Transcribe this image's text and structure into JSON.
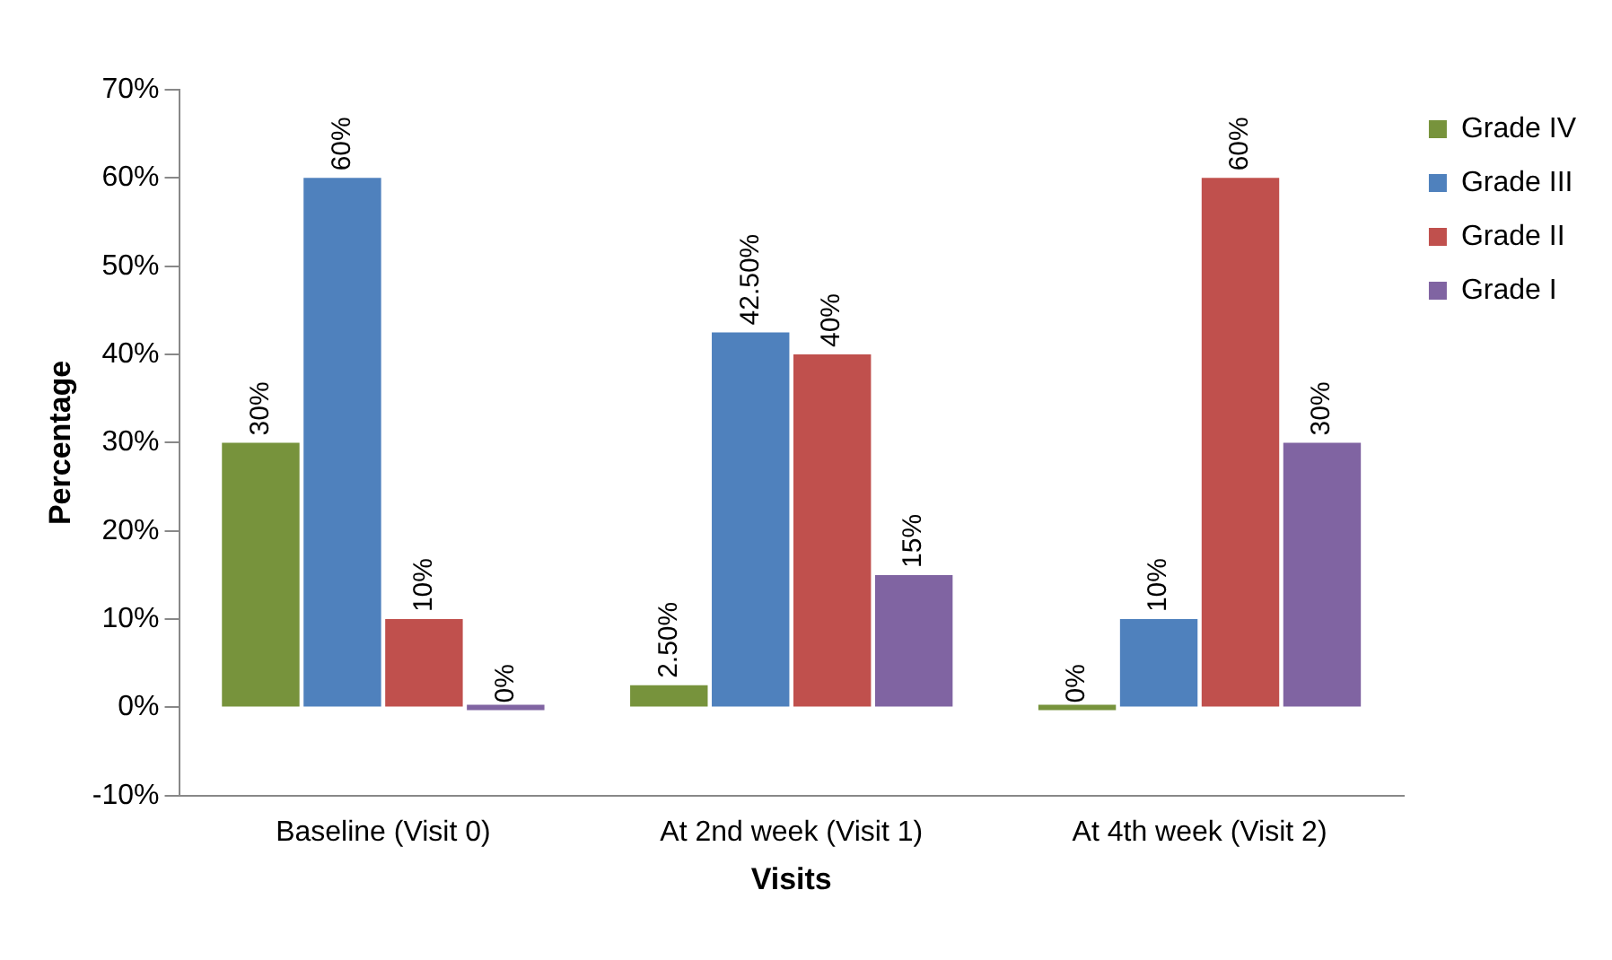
{
  "chart_data": {
    "type": "bar",
    "xlabel": "Visits",
    "ylabel": "Percentage",
    "categories": [
      "Baseline (Visit 0)",
      "At 2nd week (Visit 1)",
      "At 4th week (Visit 2)"
    ],
    "series": [
      {
        "name": "Grade IV",
        "color": "#77933c",
        "values": [
          30,
          2.5,
          0
        ],
        "value_labels": [
          "30%",
          "2.50%",
          "0%"
        ]
      },
      {
        "name": "Grade III",
        "color": "#4f81bd",
        "values": [
          60,
          42.5,
          10
        ],
        "value_labels": [
          "60%",
          "42.50%",
          "10%"
        ]
      },
      {
        "name": "Grade II",
        "color": "#c0504d",
        "values": [
          10,
          40,
          60
        ],
        "value_labels": [
          "10%",
          "40%",
          "60%"
        ]
      },
      {
        "name": "Grade I",
        "color": "#8064a2",
        "values": [
          0,
          15,
          30
        ],
        "value_labels": [
          "0%",
          "15%",
          "30%"
        ]
      }
    ],
    "ylim": [
      -10,
      70
    ],
    "yticks": [
      {
        "value": -10,
        "label": "-10%"
      },
      {
        "value": 0,
        "label": "0%"
      },
      {
        "value": 10,
        "label": "10%"
      },
      {
        "value": 20,
        "label": "20%"
      },
      {
        "value": 30,
        "label": "30%"
      },
      {
        "value": 40,
        "label": "40%"
      },
      {
        "value": 50,
        "label": "50%"
      },
      {
        "value": 60,
        "label": "60%"
      },
      {
        "value": 70,
        "label": "70%"
      }
    ],
    "grid": false,
    "legend": "top right"
  }
}
